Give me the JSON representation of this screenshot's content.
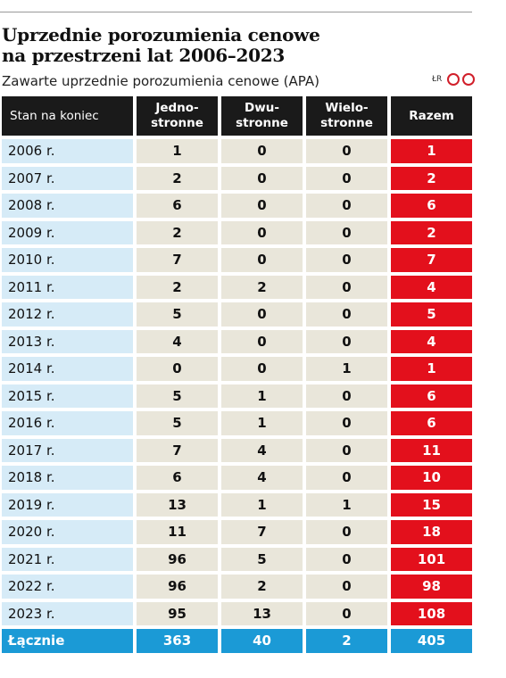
{
  "title": [
    "Uprzednie porozumienia cenowe",
    "na przestrzeni lat 2006–2023"
  ],
  "subtitle": "Zawarte uprzednie porozumienia cenowe (APA)",
  "brand": {
    "author": "ŁR",
    "logo": "CP"
  },
  "colors": {
    "header_bg": "#1a1a1a",
    "year_bg": "#d6ebf7",
    "num_bg": "#e9e6da",
    "total_bg": "#e3101c",
    "sum_bg": "#1b9ad6"
  },
  "chart_data": {
    "type": "table",
    "columns": [
      {
        "lines": [
          "Stan na koniec"
        ]
      },
      {
        "lines": [
          "Jedno-",
          "stronne"
        ]
      },
      {
        "lines": [
          "Dwu-",
          "stronne"
        ]
      },
      {
        "lines": [
          "Wielo-",
          "stronne"
        ]
      },
      {
        "lines": [
          "Razem"
        ]
      }
    ],
    "rows": [
      [
        "2006 r.",
        "1",
        "0",
        "0",
        "1"
      ],
      [
        "2007 r.",
        "2",
        "0",
        "0",
        "2"
      ],
      [
        "2008 r.",
        "6",
        "0",
        "0",
        "6"
      ],
      [
        "2009 r.",
        "2",
        "0",
        "0",
        "2"
      ],
      [
        "2010 r.",
        "7",
        "0",
        "0",
        "7"
      ],
      [
        "2011 r.",
        "2",
        "2",
        "0",
        "4"
      ],
      [
        "2012 r.",
        "5",
        "0",
        "0",
        "5"
      ],
      [
        "2013 r.",
        "4",
        "0",
        "0",
        "4"
      ],
      [
        "2014 r.",
        "0",
        "0",
        "1",
        "1"
      ],
      [
        "2015 r.",
        "5",
        "1",
        "0",
        "6"
      ],
      [
        "2016 r.",
        "5",
        "1",
        "0",
        "6"
      ],
      [
        "2017 r.",
        "7",
        "4",
        "0",
        "11"
      ],
      [
        "2018 r.",
        "6",
        "4",
        "0",
        "10"
      ],
      [
        "2019 r.",
        "13",
        "1",
        "1",
        "15"
      ],
      [
        "2020 r.",
        "11",
        "7",
        "0",
        "18"
      ],
      [
        "2021 r.",
        "96",
        "5",
        "0",
        "101"
      ],
      [
        "2022 r.",
        "96",
        "2",
        "0",
        "98"
      ],
      [
        "2023 r.",
        "95",
        "13",
        "0",
        "108"
      ]
    ],
    "totals": [
      "Łącznie",
      "363",
      "40",
      "2",
      "405"
    ]
  }
}
